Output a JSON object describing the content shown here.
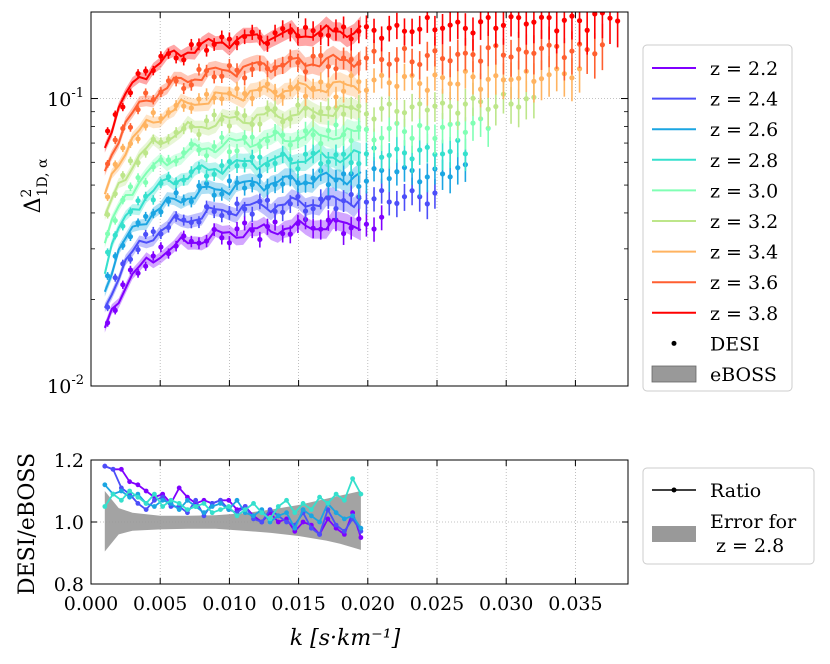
{
  "chart_data": [
    {
      "type": "line",
      "panel": "top",
      "ylabel": "Δ²_{1D,α}",
      "y_scale": "log",
      "xlim": [
        0.0,
        0.0388
      ],
      "ylim": [
        0.01,
        0.2
      ],
      "ytick_labels": [
        {
          "value": 0.1,
          "base": "10",
          "exp": "-1"
        },
        {
          "value": 0.01,
          "base": "10",
          "exp": "-2"
        }
      ],
      "grid": true,
      "legend_placement": "right",
      "colors": [
        "#8000ff",
        "#4c4ef9",
        "#1ba5e2",
        "#35e0cd",
        "#80ffb4",
        "#bde68a",
        "#ffb360",
        "#ff5f30",
        "#ff0000"
      ],
      "series": [
        {
          "name": "z = 2.2",
          "start": 0.0093,
          "plateau": 0.033,
          "kmax_desi": 0.0215
        },
        {
          "name": "z = 2.4",
          "start": 0.0105,
          "plateau": 0.04,
          "kmax_desi": 0.0249
        },
        {
          "name": "z = 2.6",
          "start": 0.0122,
          "plateau": 0.048,
          "kmax_desi": 0.0275
        },
        {
          "name": "z = 2.8",
          "start": 0.0145,
          "plateau": 0.057,
          "kmax_desi": 0.0275
        },
        {
          "name": "z = 3.0",
          "start": 0.0175,
          "plateau": 0.068,
          "kmax_desi": 0.029
        },
        {
          "name": "z = 3.2",
          "start": 0.021,
          "plateau": 0.082,
          "kmax_desi": 0.032
        },
        {
          "name": "z = 3.4",
          "start": 0.0255,
          "plateau": 0.1,
          "kmax_desi": 0.0355
        },
        {
          "name": "z = 3.6",
          "start": 0.03,
          "plateau": 0.123,
          "kmax_desi": 0.0373
        },
        {
          "name": "z = 3.8",
          "start": 0.036,
          "plateau": 0.155,
          "kmax_desi": 0.0385
        }
      ],
      "eboss_kmax": 0.0195,
      "legend_extra": [
        "DESI",
        "eBOSS"
      ]
    },
    {
      "type": "line",
      "panel": "bottom",
      "xlabel": "k [s·km⁻¹]",
      "ylabel": "DESI/eBOSS",
      "xlim": [
        0.0,
        0.0388
      ],
      "ylim": [
        0.8,
        1.2
      ],
      "xticks": [
        0.0,
        0.005,
        0.01,
        0.015,
        0.02,
        0.025,
        0.03,
        0.035
      ],
      "xtick_labels": [
        "0.000",
        "0.005",
        "0.010",
        "0.015",
        "0.020",
        "0.025",
        "0.030",
        "0.035"
      ],
      "yticks": [
        0.8,
        1.0,
        1.2
      ],
      "ytick_labels": [
        "0.8",
        "1.0",
        "1.2"
      ],
      "grid": true,
      "series": [
        {
          "z": "2.2",
          "color": "#8000ff",
          "values": [
            1.18,
            1.17,
            1.17,
            1.13,
            1.12,
            1.1,
            1.08,
            1.09,
            1.06,
            1.11,
            1.08,
            1.06,
            1.07,
            1.06,
            1.07,
            1.07,
            1.04,
            1.05,
            1.02,
            1.0,
            1.03,
            1.0,
            1.01,
            0.97,
            1.0,
            0.99,
            0.96,
            1.01,
            0.98,
            0.96,
            1.03,
            0.95
          ]
        },
        {
          "z": "2.4",
          "color": "#4c4ef9",
          "values": [
            1.18,
            1.17,
            1.11,
            1.09,
            1.06,
            1.04,
            1.07,
            1.08,
            1.05,
            1.05,
            1.03,
            1.07,
            1.02,
            1.06,
            1.07,
            1.04,
            1.03,
            1.05,
            1.01,
            1.0,
            1.04,
            1.02,
            1.0,
            0.99,
            1.03,
            0.98,
            0.96,
            1.04,
            0.99,
            0.97,
            1.01,
            0.97
          ]
        },
        {
          "z": "2.6",
          "color": "#1ba5e2",
          "values": [
            1.12,
            1.09,
            1.1,
            1.08,
            1.09,
            1.06,
            1.05,
            1.07,
            1.06,
            1.04,
            1.07,
            1.05,
            1.03,
            1.05,
            1.06,
            1.04,
            1.07,
            1.03,
            1.02,
            1.04,
            1.0,
            1.02,
            1.03,
            0.98,
            1.04,
            1.02,
            1.0,
            1.06,
            1.03,
            1.01,
            1.02,
            0.98
          ]
        },
        {
          "z": "2.8",
          "color": "#35e0cd",
          "values": [
            1.05,
            1.09,
            1.07,
            1.1,
            1.08,
            1.06,
            1.09,
            1.05,
            1.07,
            1.06,
            1.04,
            1.05,
            1.06,
            1.03,
            1.04,
            1.05,
            1.02,
            1.04,
            1.06,
            1.03,
            1.01,
            1.05,
            1.07,
            1.03,
            1.06,
            1.04,
            1.08,
            1.06,
            1.09,
            1.07,
            1.14,
            1.09
          ]
        }
      ],
      "error_band": [
        {
          "k": 0.001,
          "lo": 0.905,
          "hi": 1.1
        },
        {
          "k": 0.002,
          "lo": 0.96,
          "hi": 1.045
        },
        {
          "k": 0.003,
          "lo": 0.972,
          "hi": 1.03
        },
        {
          "k": 0.005,
          "lo": 0.976,
          "hi": 1.02
        },
        {
          "k": 0.007,
          "lo": 0.978,
          "hi": 1.02
        },
        {
          "k": 0.009,
          "lo": 0.978,
          "hi": 1.022
        },
        {
          "k": 0.011,
          "lo": 0.972,
          "hi": 1.028
        },
        {
          "k": 0.013,
          "lo": 0.965,
          "hi": 1.04
        },
        {
          "k": 0.015,
          "lo": 0.955,
          "hi": 1.055
        },
        {
          "k": 0.017,
          "lo": 0.94,
          "hi": 1.075
        },
        {
          "k": 0.018,
          "lo": 0.93,
          "hi": 1.085
        },
        {
          "k": 0.0195,
          "lo": 0.91,
          "hi": 1.1
        }
      ],
      "legend": [
        {
          "label": "Ratio",
          "kind": "line-marker"
        },
        {
          "label": "Error for\nz = 2.8",
          "kind": "patch"
        }
      ]
    }
  ]
}
